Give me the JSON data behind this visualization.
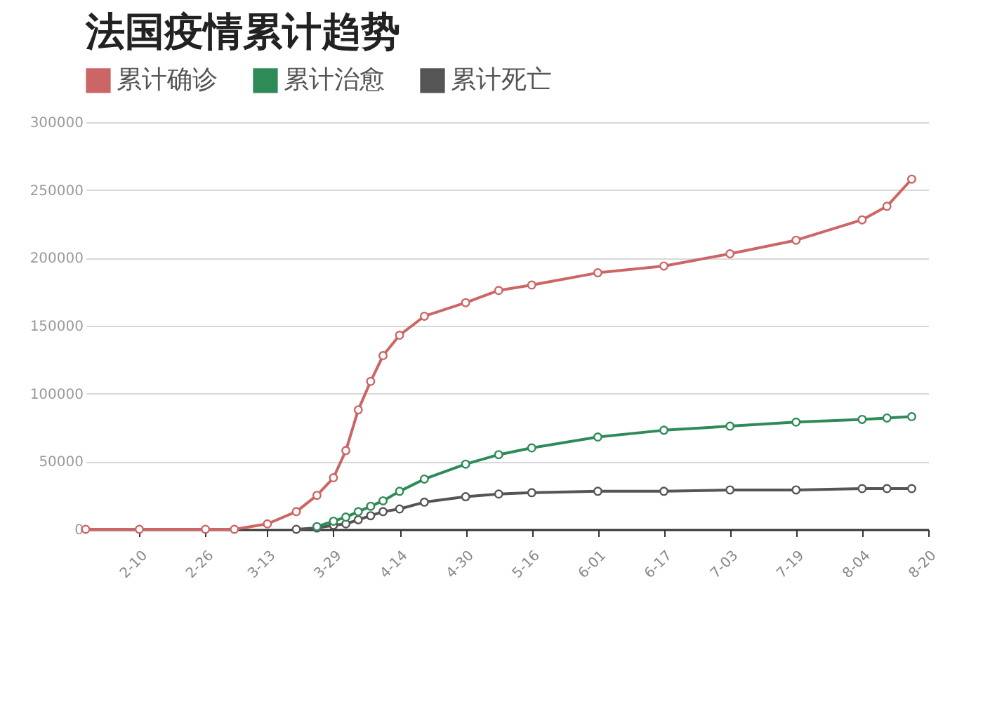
{
  "chart_data": {
    "type": "line",
    "title": "法国疫情累计趋势",
    "x": [
      "--01-28",
      "--02-10",
      "--02-26",
      "--03-05",
      "--03-13",
      "--03-20",
      "--03-25",
      "--03-29",
      "--04-01",
      "--04-04",
      "--04-07",
      "--04-10",
      "--04-14",
      "--04-20",
      "--04-30",
      "--05-08",
      "--05-16",
      "--06-01",
      "--06-17",
      "--07-03",
      "--07-19",
      "--08-04",
      "--08-10",
      "--08-16"
    ],
    "series": [
      {
        "name": "累计确诊",
        "color": "#cc6666",
        "values": [
          0,
          0,
          0,
          0,
          4000,
          13000,
          25000,
          38000,
          58000,
          88000,
          109000,
          128000,
          143000,
          157000,
          167000,
          176000,
          180000,
          189000,
          194000,
          203000,
          213000,
          228000,
          238000,
          258000
        ]
      },
      {
        "name": "累计治愈",
        "color": "#2e8b57",
        "values": [
          null,
          null,
          null,
          null,
          null,
          null,
          2000,
          6000,
          9000,
          13000,
          17000,
          21000,
          28000,
          37000,
          48000,
          55000,
          60000,
          68000,
          73000,
          76000,
          79000,
          81000,
          82000,
          83000
        ]
      },
      {
        "name": "累计死亡",
        "color": "#555555",
        "values": [
          null,
          null,
          null,
          null,
          null,
          0,
          1000,
          3000,
          4000,
          7000,
          10000,
          13000,
          15000,
          20000,
          24000,
          26000,
          27000,
          28000,
          28000,
          29000,
          29000,
          30000,
          30000,
          30000
        ]
      }
    ],
    "xlim": [
      "--01-28",
      "--08-20"
    ],
    "xticks": [
      {
        "value": "--02-10",
        "label": "2-10"
      },
      {
        "value": "--02-26",
        "label": "2-26"
      },
      {
        "value": "--03-13",
        "label": "3-13"
      },
      {
        "value": "--03-29",
        "label": "3-29"
      },
      {
        "value": "--04-14",
        "label": "4-14"
      },
      {
        "value": "--04-30",
        "label": "4-30"
      },
      {
        "value": "--05-16",
        "label": "5-16"
      },
      {
        "value": "--06-01",
        "label": "6-01"
      },
      {
        "value": "--06-17",
        "label": "6-17"
      },
      {
        "value": "--07-03",
        "label": "7-03"
      },
      {
        "value": "--07-19",
        "label": "7-19"
      },
      {
        "value": "--08-04",
        "label": "8-04"
      },
      {
        "value": "--08-20",
        "label": "8-20"
      }
    ],
    "ylim": [
      0,
      300000
    ],
    "yticks": [
      0,
      50000,
      100000,
      150000,
      200000,
      250000,
      300000
    ],
    "grid": "y",
    "legend": "top left",
    "marker": "circle",
    "line_style": "solid"
  }
}
